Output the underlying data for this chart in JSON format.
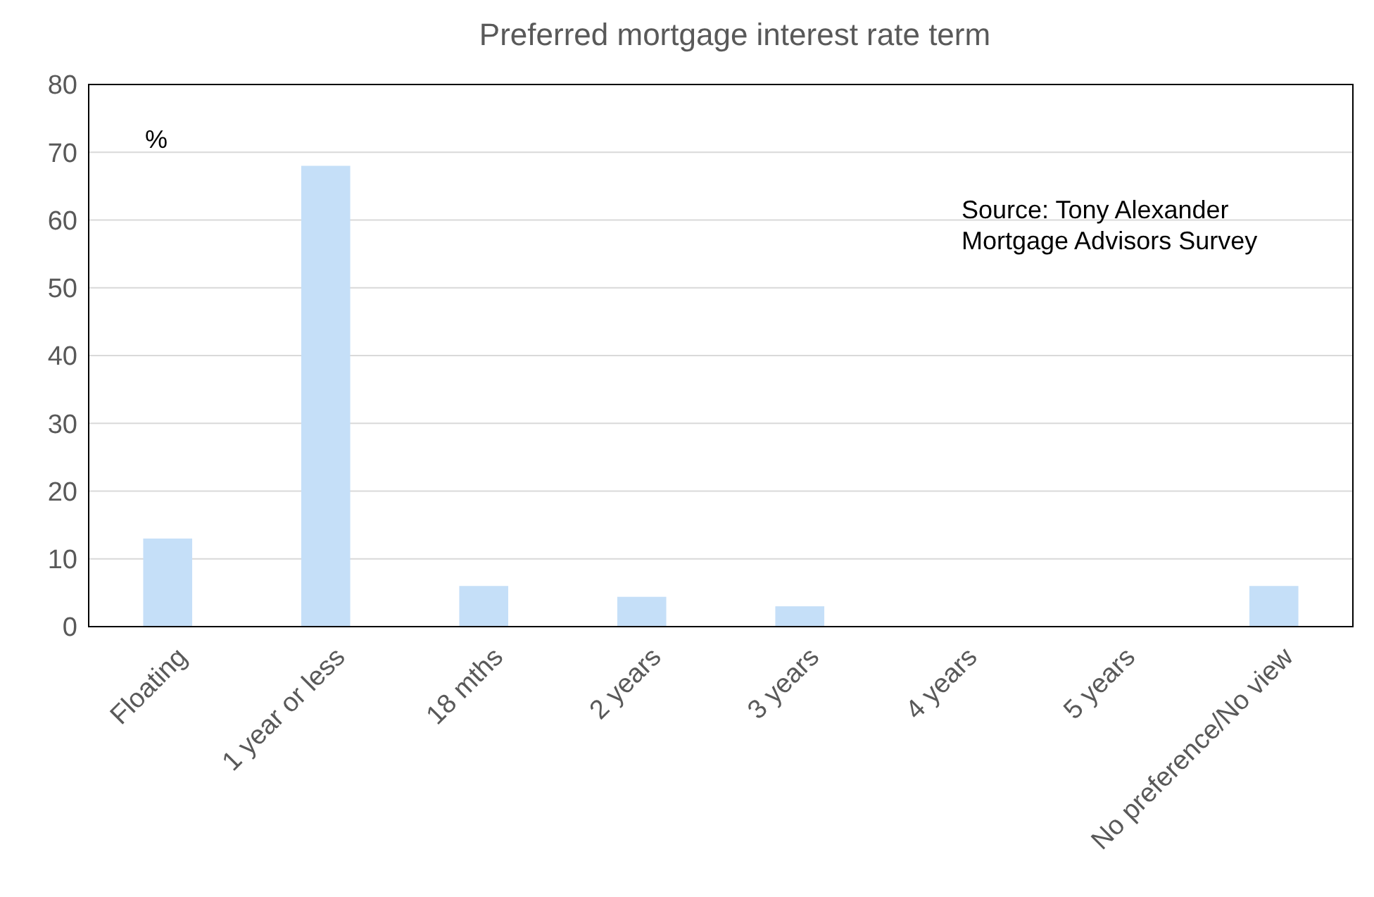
{
  "chart_data": {
    "type": "bar",
    "title": "Preferred mortgage interest rate term",
    "ylabel": "%",
    "categories": [
      "Floating",
      "1 year or less",
      "18 mths",
      "2 years",
      "3 years",
      "4 years",
      "5 years",
      "No preference/No view"
    ],
    "values": [
      13,
      68,
      6,
      4.4,
      3,
      0,
      0,
      6
    ],
    "color": "#c5dff8",
    "ylim": [
      0,
      80
    ],
    "yticks": [
      0,
      10,
      20,
      30,
      40,
      50,
      60,
      70,
      80
    ],
    "grid": "y",
    "annotations": [
      "Source: Tony Alexander Mortgage Advisors Survey"
    ]
  }
}
